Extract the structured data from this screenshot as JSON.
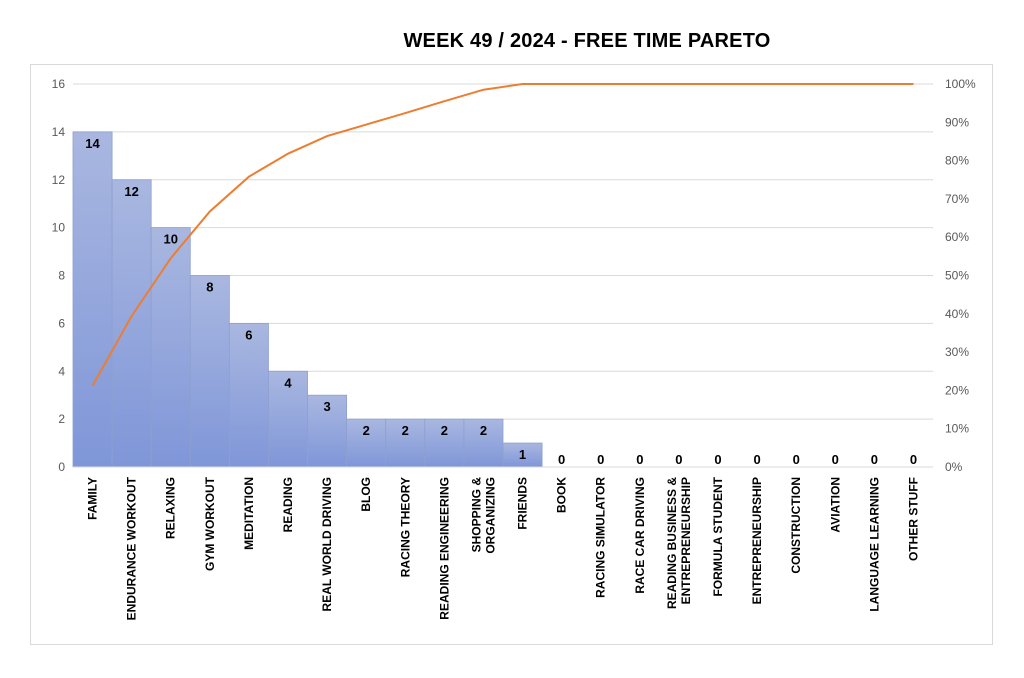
{
  "chart_data": {
    "type": "bar",
    "title": "WEEK 49  / 2024  - FREE TIME PARETO",
    "categories": [
      [
        "FAMILY"
      ],
      [
        "ENDURANCE WORKOUT"
      ],
      [
        "RELAXING"
      ],
      [
        "GYM WORKOUT"
      ],
      [
        "MEDITATION"
      ],
      [
        "READING"
      ],
      [
        "REAL WORLD DRIVING"
      ],
      [
        "BLOG"
      ],
      [
        "RACING THEORY"
      ],
      [
        "READING ENGINEERING"
      ],
      [
        "SHOPPING &",
        "ORGANIZING"
      ],
      [
        "FRIENDS"
      ],
      [
        "BOOK"
      ],
      [
        "RACING SIMULATOR"
      ],
      [
        "RACE CAR DRIVING"
      ],
      [
        "READING BUSINESS &",
        "ENTREPRENEURSHIP"
      ],
      [
        "FORMULA STUDENT"
      ],
      [
        "ENTREPRENEURSHIP"
      ],
      [
        "CONSTRUCTION"
      ],
      [
        "AVIATION"
      ],
      [
        "LANGUAGE LEARNING"
      ],
      [
        "OTHER STUFF"
      ]
    ],
    "series": [
      {
        "type": "bar",
        "values": [
          14,
          12,
          10,
          8,
          6,
          4,
          3,
          2,
          2,
          2,
          2,
          1,
          0,
          0,
          0,
          0,
          0,
          0,
          0,
          0,
          0,
          0
        ]
      },
      {
        "type": "line",
        "axis": "right",
        "values": [
          21.2,
          39.4,
          54.5,
          66.7,
          75.8,
          81.8,
          86.4,
          89.4,
          92.4,
          95.5,
          98.5,
          100,
          100,
          100,
          100,
          100,
          100,
          100,
          100,
          100,
          100,
          100
        ]
      }
    ],
    "ylim": [
      0,
      16
    ],
    "yticks": [
      0,
      2,
      4,
      6,
      8,
      10,
      12,
      14,
      16
    ],
    "y2lim": [
      0,
      100
    ],
    "y2ticks": [
      "0%",
      "10%",
      "20%",
      "30%",
      "40%",
      "50%",
      "60%",
      "70%",
      "80%",
      "90%",
      "100%"
    ],
    "grid": true,
    "legend": "none",
    "colors": {
      "bar_top": "#a9b7e0",
      "bar_bottom": "#7f96d8",
      "bar_edge": "#8ea0cf",
      "line": "#ed7d31",
      "grid": "#d9d9d9",
      "tick": "#595959"
    }
  }
}
